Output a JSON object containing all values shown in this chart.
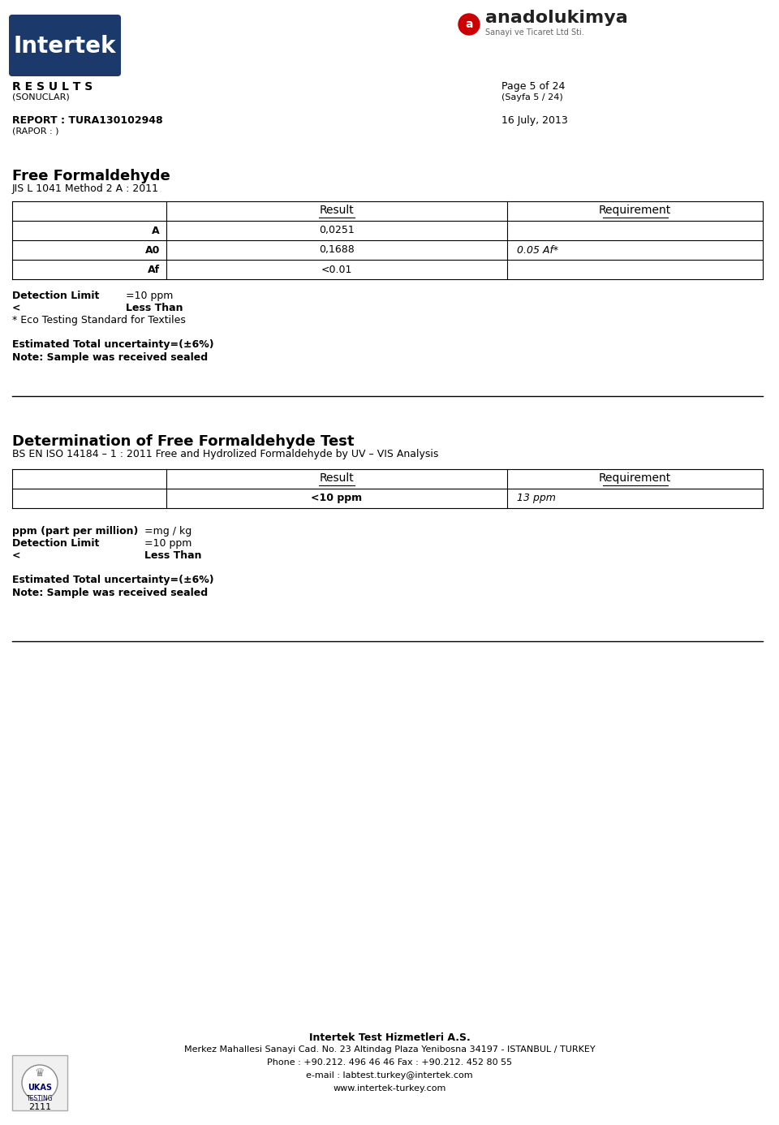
{
  "background_color": "#ffffff",
  "intertek_logo_color": "#1a3a6b",
  "intertek_text": "Intertek",
  "results_text": "R E S U L T S",
  "sonuclar_text": "(SONUCLAR)",
  "page_text": "Page 5 of 24",
  "sayfa_text": "(Sayfa 5 / 24)",
  "report_text": "REPORT : TURA130102948",
  "rapor_text": "(RAPOR : )",
  "date_text": "16 July, 2013",
  "anadolu_red": "#cc0000",
  "anadolu_text": "anadolukimya",
  "anadolu_sub": "Sanayi ve Ticaret Ltd Sti.",
  "section1_title": "Free Formaldehyde",
  "section1_subtitle": "JIS L 1041 Method 2 A : 2011",
  "table1_rows": [
    [
      "A",
      "0,0251",
      ""
    ],
    [
      "A0",
      "0,1688",
      "0.05 Af*"
    ],
    [
      "Af",
      "<0.01",
      ""
    ]
  ],
  "uncertainty1": "Estimated Total uncertainty=(±6%)",
  "note1": "Note: Sample was received sealed",
  "section2_title": "Determination of Free Formaldehyde Test",
  "section2_subtitle": "BS EN ISO 14184 – 1 : 2011 Free and Hydrolized Formaldehyde by UV – VIS Analysis",
  "table2_rows": [
    [
      "",
      "<10 ppm",
      "13 ppm"
    ]
  ],
  "uncertainty2": "Estimated Total uncertainty=(±6%)",
  "note2": "Note: Sample was received sealed",
  "footer_company": "Intertek Test Hizmetleri A.S.",
  "footer_address": "Merkez Mahallesi Sanayi Cad. No. 23 Altindag Plaza Yenibosna 34197 - ISTANBUL / TURKEY",
  "footer_phone": "Phone : +90.212. 496 46 46 Fax : +90.212. 452 80 55",
  "footer_email": "e-mail : labtest.turkey@intertek.com",
  "footer_web": "www.intertek-turkey.com",
  "ukas_text": "2111"
}
